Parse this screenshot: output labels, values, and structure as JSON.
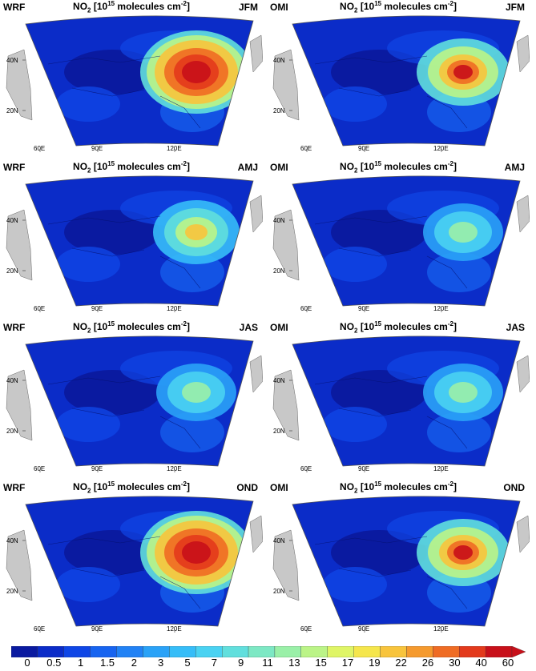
{
  "variable": {
    "prefix": "NO",
    "sub": "2",
    "bracket_open": " [10",
    "sup1": "15",
    "units": " molecules cm",
    "sup2": "-2",
    "bracket_close": "]"
  },
  "lat_labels": [
    "40N",
    "20N"
  ],
  "lon_labels": [
    "60E",
    "90E",
    "120E"
  ],
  "colorbar": {
    "ticks": [
      "0",
      "0.5",
      "1",
      "1.5",
      "2",
      "3",
      "5",
      "7",
      "9",
      "11",
      "13",
      "15",
      "17",
      "19",
      "22",
      "26",
      "30",
      "40",
      "60"
    ],
    "colors": [
      "#0a1aa0",
      "#0b2cc8",
      "#0f46e6",
      "#1764f0",
      "#2182f5",
      "#2aa2f7",
      "#36bdf8",
      "#4ad2f2",
      "#61dfdd",
      "#7de8c4",
      "#9af0a8",
      "#bbf487",
      "#dff566",
      "#f5e64c",
      "#f8c43c",
      "#f59a2e",
      "#ef6c24",
      "#e33a1c",
      "#c8101a"
    ],
    "extension": "triangle"
  },
  "panels": [
    {
      "model": "WRF",
      "season": "JFM",
      "hotspot": "strong"
    },
    {
      "model": "OMI",
      "season": "JFM",
      "hotspot": "medium"
    },
    {
      "model": "WRF",
      "season": "AMJ",
      "hotspot": "weak"
    },
    {
      "model": "OMI",
      "season": "AMJ",
      "hotspot": "faint"
    },
    {
      "model": "WRF",
      "season": "JAS",
      "hotspot": "faint"
    },
    {
      "model": "OMI",
      "season": "JAS",
      "hotspot": "faint"
    },
    {
      "model": "WRF",
      "season": "OND",
      "hotspot": "strong"
    },
    {
      "model": "OMI",
      "season": "OND",
      "hotspot": "medium"
    }
  ]
}
